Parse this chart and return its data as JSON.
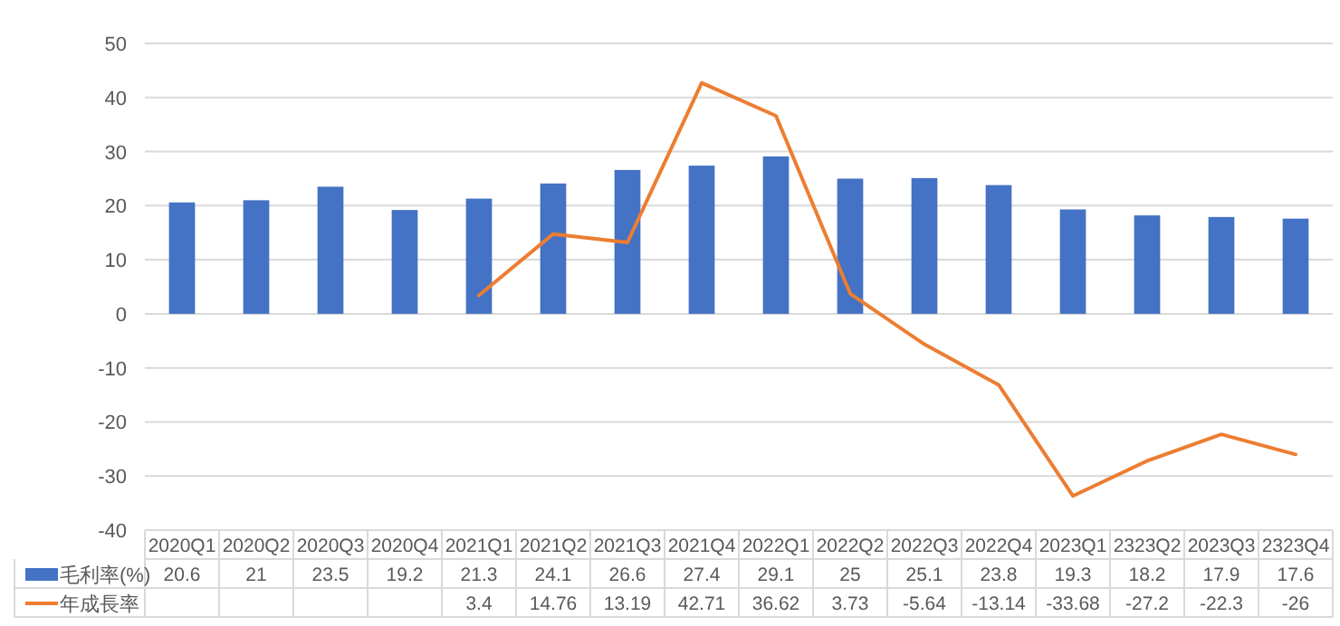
{
  "chart_data": {
    "type": "bar",
    "categories": [
      "2020Q1",
      "2020Q2",
      "2020Q3",
      "2020Q4",
      "2021Q1",
      "2021Q2",
      "2021Q3",
      "2021Q4",
      "2022Q1",
      "2022Q2",
      "2022Q3",
      "2022Q4",
      "2023Q1",
      "2323Q2",
      "2023Q3",
      "2323Q4"
    ],
    "series": [
      {
        "name": "毛利率(%)",
        "color": "#4472c4",
        "values": [
          20.6,
          21,
          23.5,
          19.2,
          21.3,
          24.1,
          26.6,
          27.4,
          29.1,
          25,
          25.1,
          23.8,
          19.3,
          18.2,
          17.9,
          17.6
        ]
      },
      {
        "name": "年成長率",
        "type": "line",
        "color": "#ed7d31",
        "values": [
          null,
          null,
          null,
          null,
          3.4,
          14.76,
          13.19,
          42.71,
          36.62,
          3.73,
          -5.64,
          -13.14,
          -33.68,
          -27.2,
          -22.3,
          -26
        ]
      }
    ],
    "ylim": [
      -40,
      50
    ],
    "yticks": [
      -40,
      -30,
      -20,
      -10,
      0,
      10,
      20,
      30,
      40,
      50
    ],
    "grid": "y",
    "legend": "bottom",
    "data_labels": true
  }
}
